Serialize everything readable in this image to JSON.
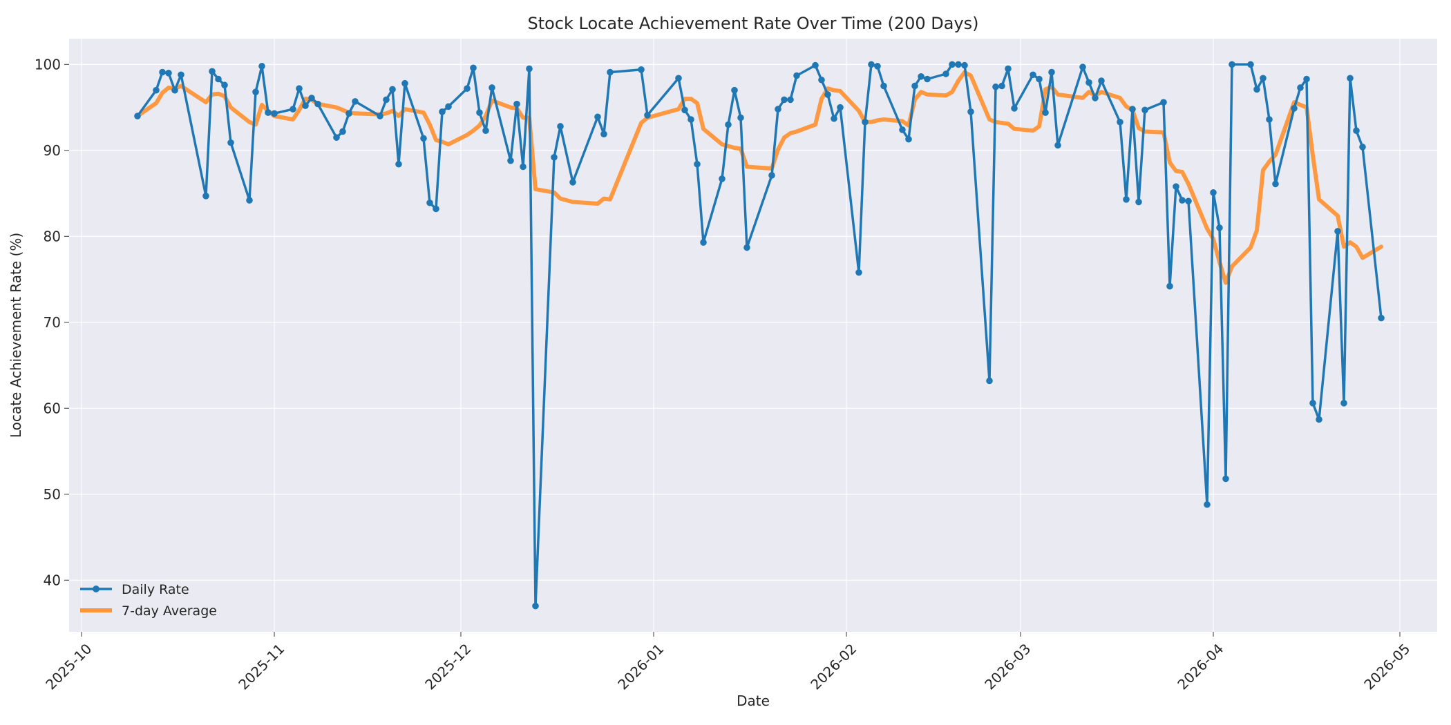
{
  "chart_data": {
    "type": "line",
    "title": "Stock Locate Achievement Rate Over Time (200 Days)",
    "xlabel": "Date",
    "ylabel": "Locate Achievement Rate (%)",
    "xlim": [
      "2025-09-29",
      "2026-05-07"
    ],
    "ylim": [
      34,
      103
    ],
    "x_ticks": [
      "2025-10",
      "2025-11",
      "2025-12",
      "2026-01",
      "2026-02",
      "2026-03",
      "2026-04",
      "2026-05"
    ],
    "y_ticks": [
      40,
      50,
      60,
      70,
      80,
      90,
      100
    ],
    "grid": true,
    "legend_position": "bottom-left",
    "colors": {
      "daily": "#1f77b4",
      "avg": "#ff9538",
      "plot_bg": "#eaeaf2",
      "grid": "#ffffff"
    },
    "series": [
      {
        "name": "Daily Rate",
        "style": "line-markers",
        "points": [
          [
            "2025-10-10",
            94.0
          ],
          [
            "2025-10-13",
            97.0
          ],
          [
            "2025-10-14",
            99.1
          ],
          [
            "2025-10-15",
            99.0
          ],
          [
            "2025-10-16",
            97.0
          ],
          [
            "2025-10-17",
            98.8
          ],
          [
            "2025-10-21",
            84.7
          ],
          [
            "2025-10-22",
            99.2
          ],
          [
            "2025-10-23",
            98.3
          ],
          [
            "2025-10-24",
            97.6
          ],
          [
            "2025-10-25",
            90.9
          ],
          [
            "2025-10-28",
            84.2
          ],
          [
            "2025-10-29",
            96.8
          ],
          [
            "2025-10-30",
            99.8
          ],
          [
            "2025-10-31",
            94.4
          ],
          [
            "2025-11-01",
            94.3
          ],
          [
            "2025-11-04",
            94.8
          ],
          [
            "2025-11-05",
            97.2
          ],
          [
            "2025-11-06",
            95.2
          ],
          [
            "2025-11-07",
            96.1
          ],
          [
            "2025-11-08",
            95.4
          ],
          [
            "2025-11-11",
            91.5
          ],
          [
            "2025-11-12",
            92.2
          ],
          [
            "2025-11-13",
            94.3
          ],
          [
            "2025-11-14",
            95.7
          ],
          [
            "2025-11-18",
            94.0
          ],
          [
            "2025-11-19",
            95.9
          ],
          [
            "2025-11-20",
            97.1
          ],
          [
            "2025-11-21",
            88.4
          ],
          [
            "2025-11-22",
            97.8
          ],
          [
            "2025-11-25",
            91.4
          ],
          [
            "2025-11-26",
            83.9
          ],
          [
            "2025-11-27",
            83.2
          ],
          [
            "2025-11-28",
            94.5
          ],
          [
            "2025-11-29",
            95.1
          ],
          [
            "2025-12-02",
            97.2
          ],
          [
            "2025-12-03",
            99.6
          ],
          [
            "2025-12-04",
            94.4
          ],
          [
            "2025-12-05",
            92.3
          ],
          [
            "2025-12-06",
            97.3
          ],
          [
            "2025-12-09",
            88.8
          ],
          [
            "2025-12-10",
            95.4
          ],
          [
            "2025-12-11",
            88.1
          ],
          [
            "2025-12-12",
            99.5
          ],
          [
            "2025-12-13",
            37.0
          ],
          [
            "2025-12-16",
            89.2
          ],
          [
            "2025-12-17",
            92.8
          ],
          [
            "2025-12-19",
            86.3
          ],
          [
            "2025-12-23",
            93.9
          ],
          [
            "2025-12-24",
            91.9
          ],
          [
            "2025-12-25",
            99.1
          ],
          [
            "2025-12-30",
            99.4
          ],
          [
            "2025-12-31",
            94.1
          ],
          [
            "2026-01-05",
            98.4
          ],
          [
            "2026-01-06",
            94.7
          ],
          [
            "2026-01-07",
            93.6
          ],
          [
            "2026-01-08",
            88.4
          ],
          [
            "2026-01-09",
            79.3
          ],
          [
            "2026-01-12",
            86.7
          ],
          [
            "2026-01-13",
            93.0
          ],
          [
            "2026-01-14",
            97.0
          ],
          [
            "2026-01-15",
            93.8
          ],
          [
            "2026-01-16",
            78.7
          ],
          [
            "2026-01-20",
            87.1
          ],
          [
            "2026-01-21",
            94.8
          ],
          [
            "2026-01-22",
            95.9
          ],
          [
            "2026-01-23",
            95.9
          ],
          [
            "2026-01-24",
            98.7
          ],
          [
            "2026-01-27",
            99.9
          ],
          [
            "2026-01-28",
            98.2
          ],
          [
            "2026-01-29",
            96.5
          ],
          [
            "2026-01-30",
            93.7
          ],
          [
            "2026-01-31",
            95.0
          ],
          [
            "2026-02-03",
            75.8
          ],
          [
            "2026-02-04",
            93.3
          ],
          [
            "2026-02-05",
            100.0
          ],
          [
            "2026-02-06",
            99.8
          ],
          [
            "2026-02-07",
            97.5
          ],
          [
            "2026-02-10",
            92.4
          ],
          [
            "2026-02-11",
            91.3
          ],
          [
            "2026-02-12",
            97.5
          ],
          [
            "2026-02-13",
            98.6
          ],
          [
            "2026-02-14",
            98.3
          ],
          [
            "2026-02-17",
            98.9
          ],
          [
            "2026-02-18",
            100.0
          ],
          [
            "2026-02-19",
            100.0
          ],
          [
            "2026-02-20",
            99.9
          ],
          [
            "2026-02-21",
            94.5
          ],
          [
            "2026-02-24",
            63.2
          ],
          [
            "2026-02-25",
            97.4
          ],
          [
            "2026-02-26",
            97.5
          ],
          [
            "2026-02-27",
            99.5
          ],
          [
            "2026-02-28",
            94.9
          ],
          [
            "2026-03-03",
            98.8
          ],
          [
            "2026-03-04",
            98.3
          ],
          [
            "2026-03-05",
            94.4
          ],
          [
            "2026-03-06",
            99.1
          ],
          [
            "2026-03-07",
            90.6
          ],
          [
            "2026-03-11",
            99.7
          ],
          [
            "2026-03-12",
            97.9
          ],
          [
            "2026-03-13",
            96.1
          ],
          [
            "2026-03-14",
            98.1
          ],
          [
            "2026-03-17",
            93.3
          ],
          [
            "2026-03-18",
            84.3
          ],
          [
            "2026-03-19",
            94.8
          ],
          [
            "2026-03-20",
            84.0
          ],
          [
            "2026-03-21",
            94.7
          ],
          [
            "2026-03-24",
            95.6
          ],
          [
            "2026-03-25",
            74.2
          ],
          [
            "2026-03-26",
            85.8
          ],
          [
            "2026-03-27",
            84.2
          ],
          [
            "2026-03-28",
            84.1
          ],
          [
            "2026-03-31",
            48.8
          ],
          [
            "2026-04-01",
            85.1
          ],
          [
            "2026-04-02",
            81.0
          ],
          [
            "2026-04-03",
            51.8
          ],
          [
            "2026-04-04",
            100.0
          ],
          [
            "2026-04-07",
            100.0
          ],
          [
            "2026-04-08",
            97.1
          ],
          [
            "2026-04-09",
            98.4
          ],
          [
            "2026-04-10",
            93.6
          ],
          [
            "2026-04-11",
            86.1
          ],
          [
            "2026-04-14",
            94.9
          ],
          [
            "2026-04-15",
            97.3
          ],
          [
            "2026-04-16",
            98.3
          ],
          [
            "2026-04-17",
            60.6
          ],
          [
            "2026-04-18",
            58.7
          ],
          [
            "2026-04-21",
            80.6
          ],
          [
            "2026-04-22",
            60.6
          ],
          [
            "2026-04-23",
            98.4
          ],
          [
            "2026-04-24",
            92.3
          ],
          [
            "2026-04-25",
            90.4
          ],
          [
            "2026-04-28",
            70.5
          ]
        ]
      },
      {
        "name": "7-day Average",
        "style": "line",
        "points": [
          [
            "2025-10-10",
            94.0
          ],
          [
            "2025-10-13",
            95.5
          ],
          [
            "2025-10-14",
            96.7
          ],
          [
            "2025-10-15",
            97.3
          ],
          [
            "2025-10-16",
            97.2
          ],
          [
            "2025-10-17",
            97.5
          ],
          [
            "2025-10-21",
            95.6
          ],
          [
            "2025-10-22",
            96.5
          ],
          [
            "2025-10-23",
            96.6
          ],
          [
            "2025-10-24",
            96.3
          ],
          [
            "2025-10-25",
            95.0
          ],
          [
            "2025-10-28",
            93.3
          ],
          [
            "2025-10-29",
            93.0
          ],
          [
            "2025-10-30",
            95.3
          ],
          [
            "2025-10-31",
            94.6
          ],
          [
            "2025-11-01",
            94.0
          ],
          [
            "2025-11-04",
            93.6
          ],
          [
            "2025-11-05",
            94.7
          ],
          [
            "2025-11-06",
            96.0
          ],
          [
            "2025-11-07",
            95.9
          ],
          [
            "2025-11-08",
            95.4
          ],
          [
            "2025-11-11",
            95.0
          ],
          [
            "2025-11-12",
            94.7
          ],
          [
            "2025-11-13",
            94.4
          ],
          [
            "2025-11-14",
            94.3
          ],
          [
            "2025-11-18",
            94.2
          ],
          [
            "2025-11-19",
            94.3
          ],
          [
            "2025-11-20",
            94.6
          ],
          [
            "2025-11-21",
            94.0
          ],
          [
            "2025-11-22",
            94.8
          ],
          [
            "2025-11-25",
            94.4
          ],
          [
            "2025-11-26",
            93.0
          ],
          [
            "2025-11-27",
            91.2
          ],
          [
            "2025-11-28",
            91.0
          ],
          [
            "2025-11-29",
            90.7
          ],
          [
            "2025-12-02",
            91.8
          ],
          [
            "2025-12-03",
            92.3
          ],
          [
            "2025-12-04",
            92.9
          ],
          [
            "2025-12-05",
            94.0
          ],
          [
            "2025-12-06",
            95.8
          ],
          [
            "2025-12-09",
            95.0
          ],
          [
            "2025-12-10",
            94.9
          ],
          [
            "2025-12-11",
            93.8
          ],
          [
            "2025-12-12",
            93.8
          ],
          [
            "2025-12-13",
            85.5
          ],
          [
            "2025-12-16",
            85.1
          ],
          [
            "2025-12-17",
            84.4
          ],
          [
            "2025-12-19",
            84.0
          ],
          [
            "2025-12-23",
            83.8
          ],
          [
            "2025-12-24",
            84.4
          ],
          [
            "2025-12-25",
            84.3
          ],
          [
            "2025-12-30",
            93.2
          ],
          [
            "2025-12-31",
            93.8
          ],
          [
            "2026-01-05",
            94.8
          ],
          [
            "2026-01-06",
            96.0
          ],
          [
            "2026-01-07",
            96.0
          ],
          [
            "2026-01-08",
            95.5
          ],
          [
            "2026-01-09",
            92.5
          ],
          [
            "2026-01-12",
            90.7
          ],
          [
            "2026-01-13",
            90.5
          ],
          [
            "2026-01-14",
            90.3
          ],
          [
            "2026-01-15",
            90.2
          ],
          [
            "2026-01-16",
            88.1
          ],
          [
            "2026-01-20",
            87.9
          ],
          [
            "2026-01-21",
            90.1
          ],
          [
            "2026-01-22",
            91.5
          ],
          [
            "2026-01-23",
            92.0
          ],
          [
            "2026-01-24",
            92.2
          ],
          [
            "2026-01-27",
            93.0
          ],
          [
            "2026-01-28",
            96.0
          ],
          [
            "2026-01-29",
            97.2
          ],
          [
            "2026-01-30",
            97.0
          ],
          [
            "2026-01-31",
            96.9
          ],
          [
            "2026-02-03",
            94.6
          ],
          [
            "2026-02-04",
            93.3
          ],
          [
            "2026-02-05",
            93.3
          ],
          [
            "2026-02-06",
            93.5
          ],
          [
            "2026-02-07",
            93.6
          ],
          [
            "2026-02-10",
            93.4
          ],
          [
            "2026-02-11",
            92.9
          ],
          [
            "2026-02-12",
            95.9
          ],
          [
            "2026-02-13",
            96.8
          ],
          [
            "2026-02-14",
            96.5
          ],
          [
            "2026-02-17",
            96.4
          ],
          [
            "2026-02-18",
            96.8
          ],
          [
            "2026-02-19",
            98.1
          ],
          [
            "2026-02-20",
            99.1
          ],
          [
            "2026-02-21",
            98.7
          ],
          [
            "2026-02-24",
            93.6
          ],
          [
            "2026-02-25",
            93.3
          ],
          [
            "2026-02-26",
            93.2
          ],
          [
            "2026-02-27",
            93.1
          ],
          [
            "2026-02-28",
            92.5
          ],
          [
            "2026-03-03",
            92.3
          ],
          [
            "2026-03-04",
            92.8
          ],
          [
            "2026-03-05",
            97.1
          ],
          [
            "2026-03-06",
            97.4
          ],
          [
            "2026-03-07",
            96.5
          ],
          [
            "2026-03-11",
            96.1
          ],
          [
            "2026-03-12",
            96.8
          ],
          [
            "2026-03-13",
            96.4
          ],
          [
            "2026-03-14",
            96.8
          ],
          [
            "2026-03-17",
            96.1
          ],
          [
            "2026-03-18",
            95.1
          ],
          [
            "2026-03-19",
            94.7
          ],
          [
            "2026-03-20",
            92.6
          ],
          [
            "2026-03-21",
            92.2
          ],
          [
            "2026-03-24",
            92.1
          ],
          [
            "2026-03-25",
            88.6
          ],
          [
            "2026-03-26",
            87.6
          ],
          [
            "2026-03-27",
            87.5
          ],
          [
            "2026-03-28",
            86.1
          ],
          [
            "2026-03-31",
            80.9
          ],
          [
            "2026-04-01",
            79.7
          ],
          [
            "2026-04-02",
            77.0
          ],
          [
            "2026-04-03",
            74.6
          ],
          [
            "2026-04-04",
            76.5
          ],
          [
            "2026-04-07",
            78.7
          ],
          [
            "2026-04-08",
            80.7
          ],
          [
            "2026-04-09",
            87.7
          ],
          [
            "2026-04-10",
            88.7
          ],
          [
            "2026-04-11",
            89.5
          ],
          [
            "2026-04-14",
            95.6
          ],
          [
            "2026-04-15",
            95.3
          ],
          [
            "2026-04-16",
            95.0
          ],
          [
            "2026-04-17",
            89.4
          ],
          [
            "2026-04-18",
            84.3
          ],
          [
            "2026-04-21",
            82.4
          ],
          [
            "2026-04-22",
            78.8
          ],
          [
            "2026-04-23",
            79.3
          ],
          [
            "2026-04-24",
            78.8
          ],
          [
            "2026-04-25",
            77.5
          ],
          [
            "2026-04-28",
            78.8
          ]
        ]
      }
    ]
  }
}
